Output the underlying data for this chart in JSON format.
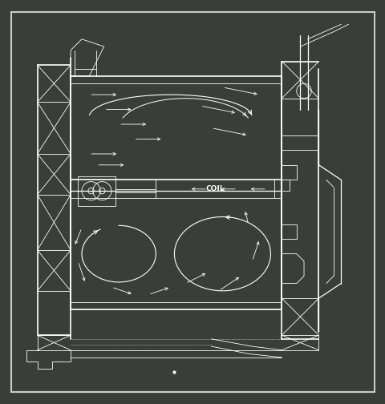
{
  "bg_outer": "#3a3d38",
  "bg_inner": "#3a3d38",
  "line_color": "#ffffff",
  "coil_label": "COIL",
  "border_color": "#cccccc",
  "lw_main": 1.2,
  "lw_med": 0.9,
  "lw_thin": 0.6
}
